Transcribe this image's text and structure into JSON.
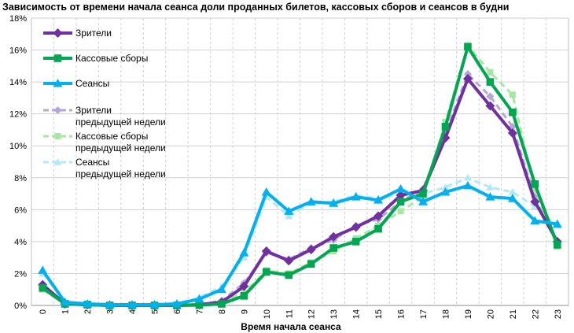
{
  "chart_data": {
    "type": "line",
    "title": "Зависимость от времени начала сеанса доли проданных билетов, кассовых сборов и сеансов в будни",
    "xlabel": "Время начала сеанса",
    "ylabel": "",
    "x": [
      0,
      1,
      2,
      3,
      4,
      5,
      6,
      7,
      8,
      9,
      10,
      11,
      12,
      13,
      14,
      15,
      16,
      17,
      18,
      19,
      20,
      21,
      22,
      23
    ],
    "ylim": [
      0,
      18
    ],
    "yticks": [
      "0%",
      "2%",
      "4%",
      "6%",
      "8%",
      "10%",
      "12%",
      "14%",
      "16%",
      "18%"
    ],
    "grid": true,
    "legend_position": "top-left",
    "series": [
      {
        "name": "Зрители",
        "name_lines": [
          "Зрители"
        ],
        "color": "#7030A0",
        "marker": "diamond",
        "dashed": false,
        "values": [
          1.3,
          0.1,
          0.05,
          0,
          0,
          0,
          0,
          0.05,
          0.2,
          1.2,
          3.4,
          2.8,
          3.5,
          4.3,
          4.9,
          5.6,
          6.9,
          7.2,
          10.5,
          14.2,
          12.5,
          10.8,
          6.5,
          4.0
        ]
      },
      {
        "name": "Кассовые сборы",
        "name_lines": [
          "Кассовые сборы"
        ],
        "color": "#00A651",
        "marker": "square",
        "dashed": false,
        "values": [
          1.1,
          0.1,
          0.05,
          0,
          0,
          0,
          0,
          0.02,
          0.1,
          0.6,
          2.1,
          1.9,
          2.6,
          3.6,
          4.0,
          4.8,
          6.5,
          7.0,
          11.2,
          16.2,
          14.0,
          12.1,
          7.6,
          3.8
        ]
      },
      {
        "name": "Сеансы",
        "name_lines": [
          "Сеансы"
        ],
        "color": "#00B0F0",
        "marker": "triangle",
        "dashed": false,
        "values": [
          2.2,
          0.2,
          0.1,
          0.05,
          0.05,
          0.05,
          0.1,
          0.4,
          1.0,
          3.3,
          7.1,
          5.9,
          6.5,
          6.4,
          6.8,
          6.6,
          7.3,
          6.5,
          7.1,
          7.5,
          6.8,
          6.7,
          5.3,
          5.1
        ]
      },
      {
        "name": "Зрители предыдущей недели",
        "name_lines": [
          "Зрители",
          "предыдущей недели"
        ],
        "color": "#B4A7D6",
        "marker": "diamond",
        "dashed": true,
        "values": [
          1.2,
          0.1,
          0.05,
          0,
          0,
          0,
          0,
          0.05,
          0.3,
          1.4,
          3.3,
          2.9,
          3.6,
          4.1,
          5.0,
          5.4,
          6.5,
          7.3,
          10.8,
          14.5,
          13.1,
          11.2,
          6.8,
          3.9
        ]
      },
      {
        "name": "Кассовые сборы предыдущей недели",
        "name_lines": [
          "Кассовые сборы",
          "предыдущей недели"
        ],
        "color": "#A8E6A3",
        "marker": "square",
        "dashed": true,
        "values": [
          1.0,
          0.1,
          0.05,
          0,
          0,
          0,
          0,
          0.02,
          0.2,
          0.8,
          2.2,
          2.0,
          2.7,
          3.4,
          4.2,
          5.0,
          5.9,
          6.8,
          11.5,
          16.3,
          14.6,
          13.2,
          7.2,
          3.7
        ]
      },
      {
        "name": "Сеансы предыдущей недели",
        "name_lines": [
          "Сеансы",
          "предыдущей недели"
        ],
        "color": "#B3E9F7",
        "marker": "triangle",
        "dashed": true,
        "values": [
          2.0,
          0.2,
          0.1,
          0.05,
          0.05,
          0.05,
          0.1,
          0.5,
          1.2,
          3.0,
          6.8,
          5.6,
          6.4,
          6.5,
          6.9,
          6.7,
          7.0,
          7.0,
          7.4,
          8.0,
          7.4,
          7.1,
          6.2,
          5.0
        ]
      }
    ]
  }
}
